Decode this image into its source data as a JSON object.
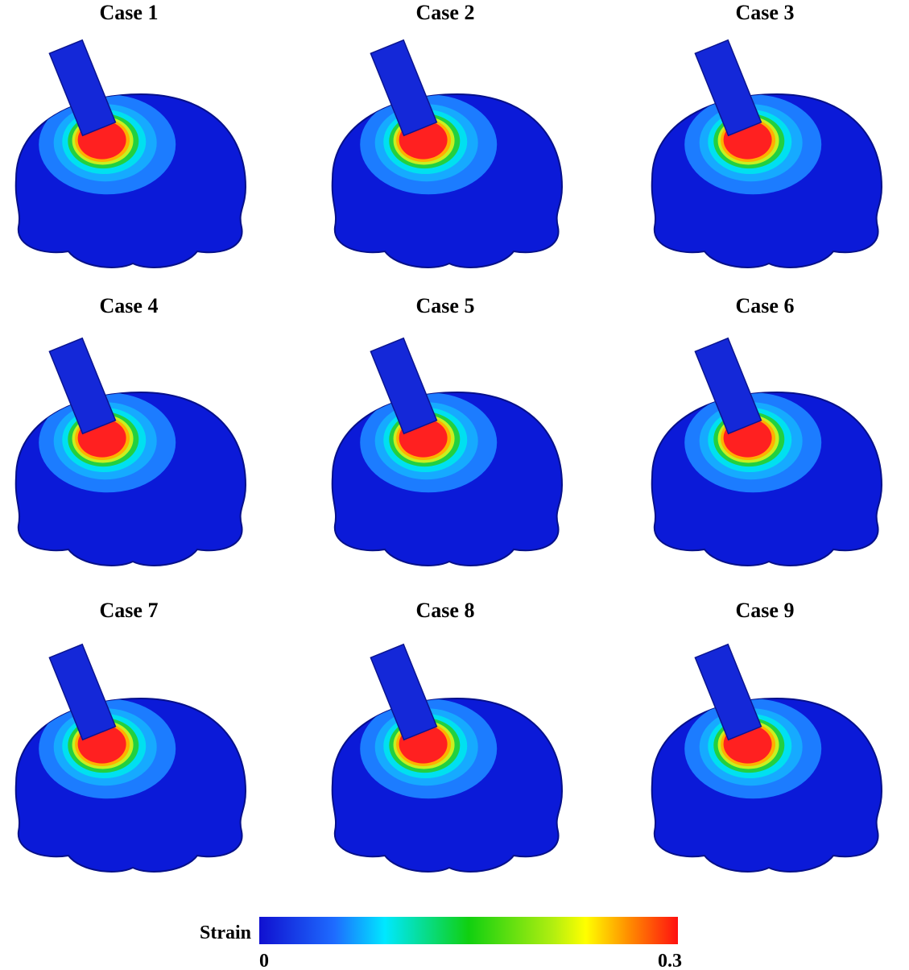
{
  "panels": [
    {
      "title": "Case 1"
    },
    {
      "title": "Case 2"
    },
    {
      "title": "Case 3"
    },
    {
      "title": "Case 4"
    },
    {
      "title": "Case 5"
    },
    {
      "title": "Case 6"
    },
    {
      "title": "Case 7"
    },
    {
      "title": "Case 8"
    },
    {
      "title": "Case 9"
    }
  ],
  "colorbar": {
    "label": "Strain",
    "range": [
      0,
      0.3
    ],
    "ticks": [
      0,
      0.3
    ]
  }
}
